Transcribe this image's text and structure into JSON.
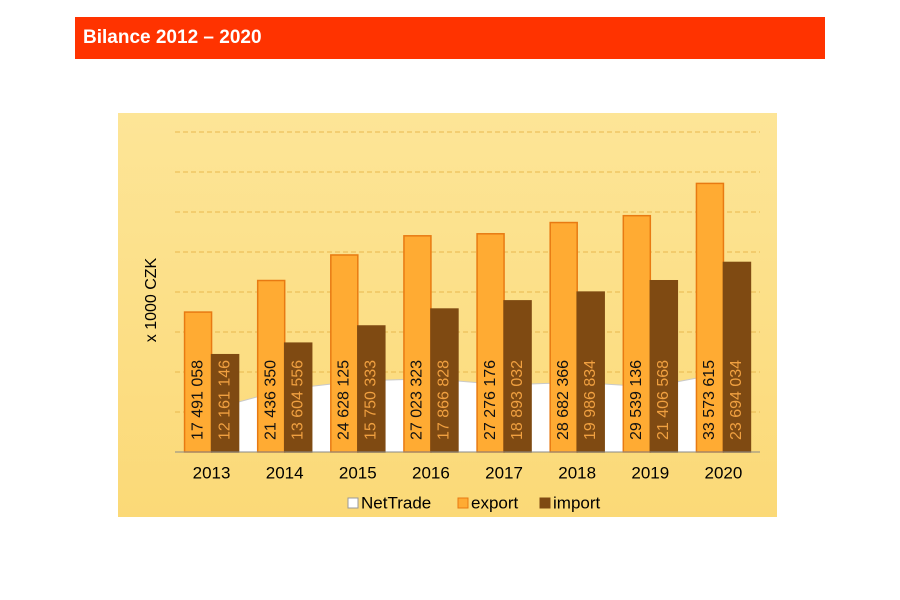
{
  "header": {
    "title": "Bilance 2012 – 2020"
  },
  "chart_data": {
    "type": "bar",
    "y_label": "x 1000 CZK",
    "categories": [
      "2013",
      "2014",
      "2015",
      "2016",
      "2017",
      "2018",
      "2019",
      "2020"
    ],
    "series": [
      {
        "name": "NetTrade",
        "color": "#ffffff",
        "type": "area",
        "values": [
          5329912,
          7831794,
          8877792,
          9156495,
          8383144,
          8695532,
          8132568,
          9879581
        ]
      },
      {
        "name": "export",
        "color": "#ffab33",
        "type": "bar",
        "values": [
          17491058,
          21436350,
          24628125,
          27023323,
          27276176,
          28682366,
          29539136,
          33573615
        ],
        "value_labels": [
          "17 491 058",
          "21 436 350",
          "24 628 125",
          "27 023 323",
          "27 276 176",
          "28 682 366",
          "29 539 136",
          "33 573 615"
        ]
      },
      {
        "name": "import",
        "color": "#7f4a12",
        "type": "bar",
        "values": [
          12161146,
          13604556,
          15750333,
          17866828,
          18893032,
          19986834,
          21406568,
          23694034
        ],
        "value_labels": [
          "12 161 146",
          "13 604 556",
          "15 750 333",
          "17 866 828",
          "18 893 032",
          "19 986 834",
          "21 406 568",
          "23 694 034"
        ]
      }
    ],
    "ylim": [
      0,
      40000000
    ],
    "yticks": [
      0,
      5000000,
      10000000,
      15000000,
      20000000,
      25000000,
      30000000,
      35000000,
      40000000
    ],
    "grid": true
  }
}
